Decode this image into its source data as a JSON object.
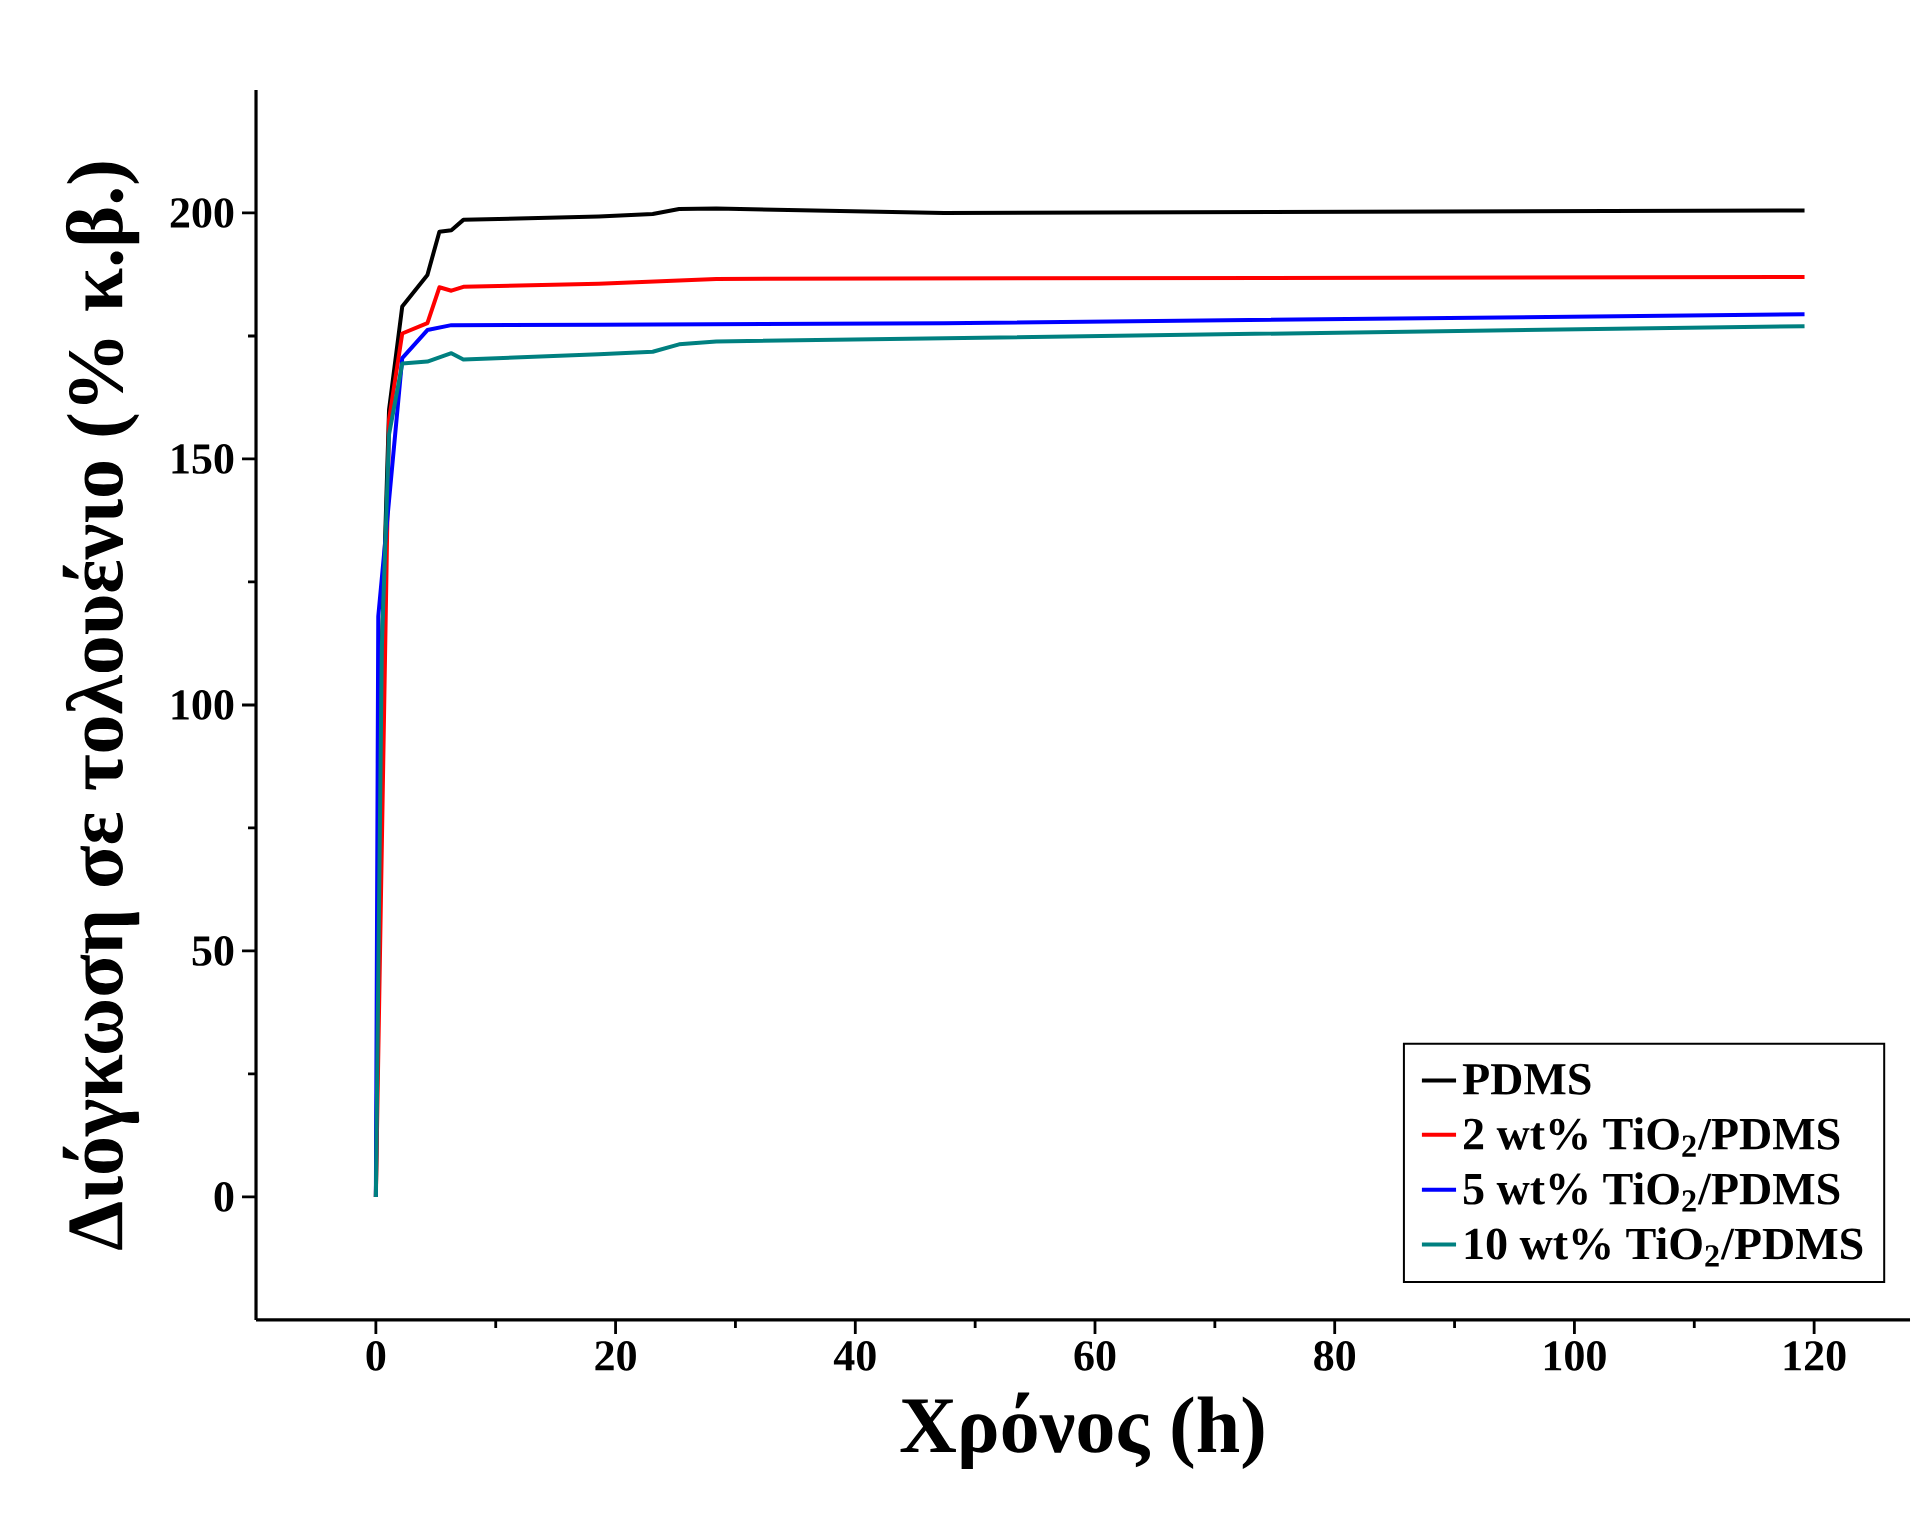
{
  "chart_data": {
    "type": "line",
    "xlabel": "Χρόνος (h)",
    "ylabel": "Διόγκωση σε τολουένιο (% κ.β.)",
    "xlim": [
      -10,
      128
    ],
    "ylim": [
      -25,
      225
    ],
    "xticks": [
      0,
      20,
      40,
      60,
      80,
      100,
      120
    ],
    "yticks": [
      0,
      50,
      100,
      150,
      200
    ],
    "legend": "bottom right",
    "grid": false,
    "marker": "none",
    "line_style": "solid",
    "series": [
      {
        "name": "PDMS",
        "color": "#000000",
        "x": [
          0,
          0.5,
          1.1,
          2.2,
          4.3,
          5.3,
          6.3,
          7.3,
          18.6,
          23.1,
          25.3,
          28.4,
          47.4,
          119.2
        ],
        "values": [
          0,
          112,
          160,
          181,
          187.4,
          196.2,
          196.5,
          198.6,
          199.3,
          199.8,
          200.8,
          200.9,
          200,
          200.5
        ]
      },
      {
        "name": "2 wt% TiO$_{2}$/PDMS",
        "color": "#ff0000",
        "x": [
          0,
          0.5,
          1.1,
          2.2,
          4.3,
          5.3,
          6.3,
          7.3,
          18.6,
          25.3,
          28.4,
          119.2
        ],
        "values": [
          0,
          null,
          158,
          175.5,
          177.6,
          184.9,
          184.2,
          185,
          185.6,
          186.3,
          186.6,
          187
        ]
      },
      {
        "name": "5 wt% TiO$_{2}$/PDMS",
        "color": "#0000ff",
        "x": [
          0,
          0.2,
          2.2,
          4.3,
          6.3,
          18.6,
          47.4,
          119.2
        ],
        "values": [
          0,
          118,
          170.5,
          176.2,
          177.2,
          177.3,
          177.6,
          179.4
        ]
      },
      {
        "name": "10 wt% TiO$_{2}$/PDMS",
        "color": "#008080",
        "x": [
          0,
          0.5,
          1.1,
          2.2,
          4.3,
          6.3,
          7.3,
          18.6,
          23.1,
          25.3,
          28.4,
          119.2
        ],
        "values": [
          0,
          112,
          155,
          169.4,
          169.8,
          171.5,
          170.2,
          171.3,
          171.8,
          173.3,
          173.9,
          177
        ]
      }
    ]
  }
}
